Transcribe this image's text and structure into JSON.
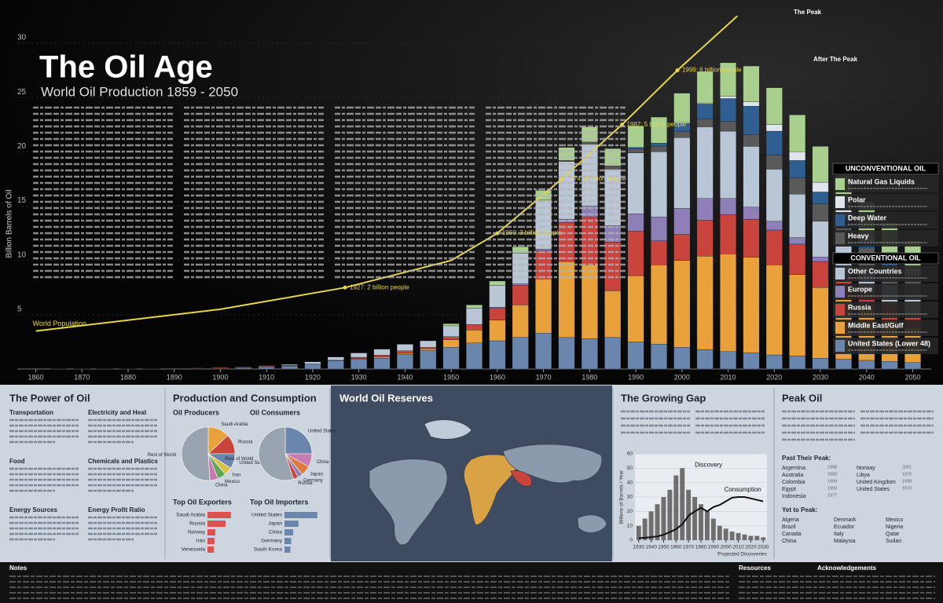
{
  "chart_data": [
    {
      "type": "stacked_bar",
      "title": "The Oil Age",
      "subtitle": "World Oil Production 1859 - 2050",
      "y_label": "Billion Barrels of Oil",
      "x": [
        1860,
        1865,
        1870,
        1875,
        1880,
        1885,
        1890,
        1895,
        1900,
        1905,
        1910,
        1915,
        1920,
        1925,
        1930,
        1935,
        1940,
        1945,
        1950,
        1955,
        1960,
        1965,
        1970,
        1975,
        1980,
        1985,
        1990,
        1995,
        2000,
        2005,
        2010,
        2015,
        2020,
        2025,
        2030,
        2035,
        2040,
        2045,
        2050
      ],
      "xlim": [
        1856,
        2054
      ],
      "xticks": [
        1860,
        1870,
        1880,
        1890,
        1900,
        1910,
        1920,
        1930,
        1940,
        1950,
        1960,
        1970,
        1980,
        1990,
        2000,
        2010,
        2020,
        2030,
        2040,
        2050
      ],
      "ylim": [
        0,
        30
      ],
      "yticks": [
        5,
        10,
        15,
        20,
        25,
        30
      ],
      "grid": true,
      "legend_groups": [
        "UNCONVENTIONAL OIL",
        "CONVENTIONAL OIL"
      ],
      "series": [
        {
          "name": "United States (Lower 48)",
          "color": "#6b86ad",
          "unconventional": false,
          "values": [
            0,
            0.01,
            0.01,
            0.01,
            0.03,
            0.02,
            0.05,
            0.05,
            0.06,
            0.13,
            0.2,
            0.28,
            0.44,
            0.76,
            0.9,
            1.0,
            1.35,
            1.7,
            2.0,
            2.4,
            2.6,
            2.9,
            3.3,
            2.9,
            2.8,
            2.9,
            2.5,
            2.3,
            2.0,
            1.8,
            1.6,
            1.5,
            1.3,
            1.2,
            1.0,
            0.9,
            0.8,
            0.7,
            0.6
          ]
        },
        {
          "name": "Middle East/Gulf",
          "color": "#e9a13b",
          "unconventional": false,
          "values": [
            0,
            0,
            0,
            0,
            0,
            0,
            0,
            0,
            0,
            0,
            0,
            0,
            0,
            0,
            0.05,
            0.1,
            0.1,
            0.15,
            0.7,
            1.2,
            1.9,
            3.0,
            5.0,
            7.0,
            6.8,
            4.3,
            6.1,
            7.3,
            8.0,
            8.6,
            9.0,
            8.8,
            8.3,
            7.5,
            6.5,
            5.5,
            4.6,
            3.8,
            3.2
          ]
        },
        {
          "name": "Russia",
          "color": "#c9443d",
          "unconventional": false,
          "values": [
            0,
            0,
            0,
            0,
            0.01,
            0.02,
            0.03,
            0.05,
            0.07,
            0.05,
            0.06,
            0.07,
            0.02,
            0.05,
            0.13,
            0.18,
            0.23,
            0.15,
            0.28,
            0.5,
            1.1,
            1.8,
            2.6,
            3.6,
            4.4,
            4.5,
            4.1,
            2.2,
            2.4,
            3.3,
            3.6,
            3.5,
            3.2,
            2.8,
            2.4,
            2.0,
            1.7,
            1.4,
            1.2
          ]
        },
        {
          "name": "Europe",
          "color": "#8e7fb8",
          "unconventional": false,
          "values": [
            0,
            0,
            0,
            0,
            0,
            0,
            0,
            0,
            0,
            0,
            0,
            0,
            0,
            0,
            0,
            0,
            0,
            0,
            0,
            0,
            0.1,
            0.15,
            0.15,
            0.3,
            1.0,
            1.5,
            1.6,
            2.2,
            2.4,
            2.0,
            1.5,
            1.1,
            0.8,
            0.6,
            0.4,
            0.3,
            0.2,
            0.15,
            0.1
          ]
        },
        {
          "name": "Other Countries",
          "color": "#b9c6d6",
          "unconventional": false,
          "values": [
            0,
            0,
            0,
            0,
            0,
            0,
            0,
            0,
            0.02,
            0.03,
            0.05,
            0.08,
            0.2,
            0.3,
            0.4,
            0.55,
            0.6,
            0.6,
            1.0,
            1.5,
            2.0,
            2.8,
            4.5,
            5.3,
            5.7,
            5.2,
            5.6,
            6.0,
            6.5,
            6.6,
            6.2,
            5.6,
            4.8,
            4.0,
            3.3,
            2.6,
            2.1,
            1.7,
            1.4
          ]
        },
        {
          "name": "Heavy",
          "color": "#5a5a5a",
          "unconventional": true,
          "values": [
            0,
            0,
            0,
            0,
            0,
            0,
            0,
            0,
            0,
            0,
            0,
            0,
            0,
            0,
            0,
            0,
            0,
            0,
            0,
            0,
            0,
            0,
            0,
            0.1,
            0.2,
            0.3,
            0.4,
            0.5,
            0.6,
            0.7,
            0.9,
            1.1,
            1.3,
            1.5,
            1.6,
            1.7,
            1.8,
            1.8,
            1.8
          ]
        },
        {
          "name": "Deep Water",
          "color": "#2f5f91",
          "unconventional": true,
          "values": [
            0,
            0,
            0,
            0,
            0,
            0,
            0,
            0,
            0,
            0,
            0,
            0,
            0,
            0,
            0,
            0,
            0,
            0,
            0,
            0,
            0,
            0,
            0,
            0,
            0,
            0,
            0.1,
            0.3,
            0.7,
            1.4,
            2.1,
            2.6,
            2.2,
            1.6,
            1.1,
            0.8,
            0.5,
            0.4,
            0.3
          ]
        },
        {
          "name": "Polar",
          "color": "#dfe5ec",
          "unconventional": true,
          "values": [
            0,
            0,
            0,
            0,
            0,
            0,
            0,
            0,
            0,
            0,
            0,
            0,
            0,
            0,
            0,
            0,
            0,
            0,
            0,
            0,
            0,
            0,
            0,
            0,
            0,
            0,
            0,
            0,
            0.1,
            0.1,
            0.2,
            0.4,
            0.6,
            0.8,
            0.9,
            0.9,
            0.8,
            0.8,
            0.7
          ]
        },
        {
          "name": "Natural Gas Liquids",
          "color": "#a9cf8f",
          "unconventional": true,
          "values": [
            0,
            0,
            0,
            0,
            0,
            0,
            0,
            0,
            0,
            0,
            0,
            0,
            0,
            0,
            0,
            0,
            0,
            0,
            0.2,
            0.3,
            0.4,
            0.6,
            0.9,
            1.2,
            1.4,
            1.6,
            2.0,
            2.4,
            2.7,
            2.9,
            3.1,
            3.3,
            3.4,
            3.4,
            3.3,
            3.1,
            2.9,
            2.7,
            2.5
          ]
        }
      ],
      "overlay": {
        "name": "World Population",
        "color": "#e6d64a",
        "x": [
          1860,
          1900,
          1927,
          1950,
          1960,
          1974,
          1987,
          1999,
          2012
        ],
        "values": [
          1.2,
          1.6,
          2,
          2.5,
          3,
          4,
          5,
          6,
          7
        ],
        "value_labels": [
          null,
          null,
          "1927: 2 billion people",
          null,
          "1960: 3 billion people",
          "1974: 4 billion people",
          "1987: 5 billion people",
          "1999: 6 billion people",
          null
        ],
        "y2lim": [
          0.5,
          6.5
        ]
      },
      "annotations": [
        "The Peak",
        "After The Peak"
      ]
    },
    {
      "type": "pie",
      "title": "Oil Producers",
      "categories": [
        "Saudi Arabia",
        "Russia",
        "United States",
        "Iran",
        "Mexico",
        "China",
        "Rest of World"
      ],
      "values": [
        13,
        12,
        9,
        5,
        5,
        5,
        51
      ],
      "colors": [
        "#e9a13b",
        "#c9443d",
        "#6b86ad",
        "#d9c24a",
        "#5fa65a",
        "#c77bb0",
        "#9aa4b1"
      ]
    },
    {
      "type": "pie",
      "title": "Oil Consumers",
      "categories": [
        "United States",
        "China",
        "Japan",
        "Germany",
        "Russia",
        "Rest of World"
      ],
      "values": [
        25,
        8,
        6,
        3,
        3,
        55
      ],
      "colors": [
        "#6b86ad",
        "#c77bb0",
        "#e07a3c",
        "#8e7fb8",
        "#c9443d",
        "#9aa4b1"
      ]
    },
    {
      "type": "hbar",
      "title": "Top Oil Exporters",
      "categories": [
        "Saudi Arabia",
        "Russia",
        "Norway",
        "Iran",
        "Venezuela"
      ],
      "values": [
        8.7,
        6.7,
        2.9,
        2.6,
        2.4
      ],
      "xlim": [
        0,
        14
      ],
      "color": "#d9534f"
    },
    {
      "type": "hbar",
      "title": "Top Oil Importers",
      "categories": [
        "United States",
        "Japan",
        "China",
        "Germany",
        "South Korea"
      ],
      "values": [
        12.2,
        5.2,
        3.2,
        2.5,
        2.2
      ],
      "xlim": [
        0,
        14
      ],
      "color": "#6b86ad"
    },
    {
      "type": "bar_line",
      "title": "The Growing Gap",
      "y_label": "Billions of Barrels / Year",
      "x": [
        1930,
        1935,
        1940,
        1945,
        1950,
        1955,
        1960,
        1965,
        1970,
        1975,
        1980,
        1985,
        1990,
        1995,
        2000,
        2005,
        2010,
        2015,
        2020,
        2025,
        2030
      ],
      "xlim": [
        1927,
        2033
      ],
      "xticks": [
        1930,
        1940,
        1950,
        1960,
        1970,
        1980,
        1990,
        2000,
        2010,
        2020,
        2030
      ],
      "ylim": [
        0,
        60
      ],
      "yticks": [
        0,
        10,
        20,
        30,
        40,
        50,
        60
      ],
      "series": [
        {
          "name": "Discovery",
          "color": "#6f6f6f",
          "values": [
            10,
            15,
            20,
            25,
            30,
            35,
            45,
            50,
            35,
            30,
            25,
            20,
            15,
            10,
            8,
            6,
            5,
            4,
            3,
            3,
            2
          ]
        },
        {
          "name": "Consumption",
          "color": "#111111",
          "values": [
            1.4,
            1.7,
            2.1,
            2.6,
            3.8,
            5.6,
            7.7,
            11,
            17,
            20,
            22.5,
            20,
            23,
            24.5,
            27,
            29.5,
            30,
            30,
            29,
            28,
            27
          ]
        }
      ],
      "annotations": [
        "Projected Discoveries"
      ]
    }
  ],
  "panels": {
    "power": {
      "title": "The Power of Oil",
      "headings": [
        "Transportation",
        "Electricity and Heat",
        "Food",
        "Chemicals and Plastics",
        "Energy Sources",
        "Energy Profit Ratio"
      ]
    },
    "production": {
      "title": "Production and Consumption"
    },
    "reserves": {
      "title": "World Oil Reserves"
    },
    "peak": {
      "title": "Peak Oil",
      "past_title": "Past Their Peak:",
      "past": [
        [
          "Argentina",
          "1998"
        ],
        [
          "Australia",
          "2000"
        ],
        [
          "Colombia",
          "1999"
        ],
        [
          "Egypt",
          "1993"
        ],
        [
          "Indonesia",
          "1977"
        ],
        [
          "Norway",
          "2001"
        ],
        [
          "Libya",
          "1970"
        ],
        [
          "United Kingdom",
          "1999"
        ],
        [
          "United States",
          "1970"
        ]
      ],
      "yet_title": "Yet to Peak:",
      "yet": [
        "Algeria",
        "Brazil",
        "Canada",
        "China",
        "Denmark",
        "Ecuador",
        "Italy",
        "Malaysia",
        "Mexico",
        "Nigeria",
        "Qatar",
        "Sudan"
      ]
    },
    "footer": [
      "Notes",
      "Resources",
      "Acknowledgements"
    ]
  }
}
